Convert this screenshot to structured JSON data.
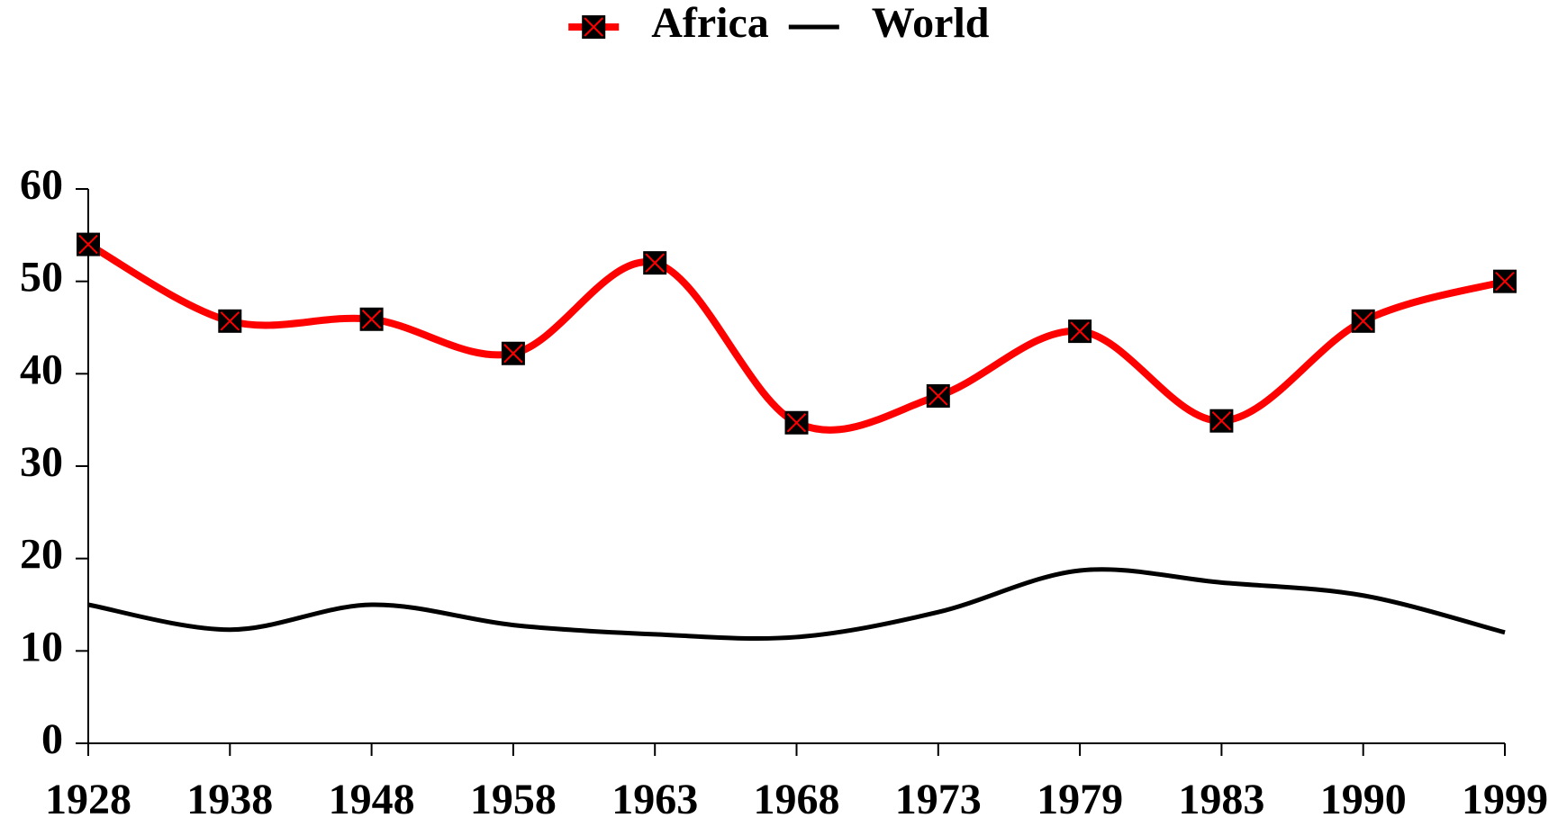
{
  "chart_data": {
    "type": "line",
    "categories": [
      "1928",
      "1938",
      "1948",
      "1958",
      "1963",
      "1968",
      "1973",
      "1979",
      "1983",
      "1990",
      "1999"
    ],
    "series": [
      {
        "name": "Africa",
        "color": "#ff0000",
        "marker": "square-x",
        "values": [
          54,
          45.7,
          45.9,
          42.2,
          52,
          34.7,
          37.6,
          44.6,
          34.9,
          45.7,
          50
        ]
      },
      {
        "name": "World",
        "color": "#000000",
        "values": [
          15,
          12.3,
          15,
          12.8,
          11.8,
          11.5,
          14.2,
          18.7,
          17.4,
          16,
          12
        ]
      }
    ],
    "ylim": [
      0,
      60
    ],
    "yticks": [
      0,
      10,
      20,
      30,
      40,
      50,
      60
    ],
    "grid": false,
    "legend": "top"
  }
}
